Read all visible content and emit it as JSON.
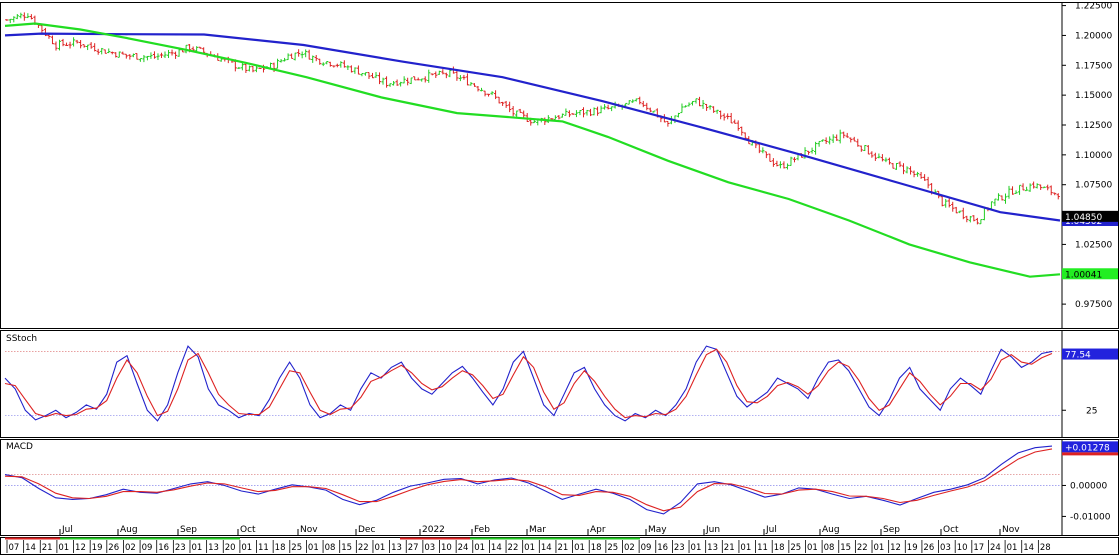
{
  "chart_data": [
    {
      "type": "candlestick",
      "panel": "price",
      "title": "",
      "ylim": [
        0.955,
        1.228
      ],
      "y_ticks": [
        0.975,
        1.0,
        1.025,
        1.05,
        1.075,
        1.1,
        1.125,
        1.15,
        1.175,
        1.2,
        1.225
      ],
      "y_tick_labels": [
        "0.97500",
        "1.00000",
        "1.02500",
        "1.05000",
        "1.07500",
        "1.10000",
        "1.12500",
        "1.15000",
        "1.17500",
        "1.20000",
        "1.22500"
      ],
      "bar_count": 300,
      "close_path": [
        [
          0,
          1.213
        ],
        [
          6,
          1.218
        ],
        [
          10,
          1.205
        ],
        [
          14,
          1.192
        ],
        [
          20,
          1.194
        ],
        [
          28,
          1.187
        ],
        [
          34,
          1.183
        ],
        [
          42,
          1.182
        ],
        [
          48,
          1.186
        ],
        [
          52,
          1.19
        ],
        [
          58,
          1.184
        ],
        [
          64,
          1.176
        ],
        [
          70,
          1.17
        ],
        [
          76,
          1.175
        ],
        [
          80,
          1.183
        ],
        [
          84,
          1.186
        ],
        [
          88,
          1.18
        ],
        [
          94,
          1.176
        ],
        [
          100,
          1.17
        ],
        [
          108,
          1.16
        ],
        [
          114,
          1.163
        ],
        [
          120,
          1.166
        ],
        [
          126,
          1.168
        ],
        [
          132,
          1.16
        ],
        [
          138,
          1.15
        ],
        [
          144,
          1.135
        ],
        [
          150,
          1.128
        ],
        [
          156,
          1.132
        ],
        [
          162,
          1.135
        ],
        [
          168,
          1.137
        ],
        [
          174,
          1.14
        ],
        [
          180,
          1.145
        ],
        [
          184,
          1.136
        ],
        [
          188,
          1.125
        ],
        [
          192,
          1.14
        ],
        [
          196,
          1.145
        ],
        [
          202,
          1.135
        ],
        [
          208,
          1.125
        ],
        [
          212,
          1.108
        ],
        [
          216,
          1.098
        ],
        [
          220,
          1.09
        ],
        [
          226,
          1.1
        ],
        [
          232,
          1.11
        ],
        [
          238,
          1.117
        ],
        [
          244,
          1.105
        ],
        [
          250,
          1.093
        ],
        [
          256,
          1.088
        ],
        [
          262,
          1.075
        ],
        [
          266,
          1.06
        ],
        [
          272,
          1.05
        ],
        [
          276,
          1.045
        ],
        [
          280,
          1.06
        ],
        [
          286,
          1.07
        ],
        [
          292,
          1.075
        ],
        [
          298,
          1.068
        ]
      ],
      "moving_averages": [
        {
          "color": "#2222cc",
          "last_value": 1.04502,
          "last_value_label": "1.04502",
          "path": [
            [
              0,
              1.2
            ],
            [
              18,
              1.2015
            ],
            [
              60,
              1.201
            ],
            [
              100,
              1.2008
            ],
            [
              150,
              1.192
            ],
            [
              200,
              1.178
            ],
            [
              250,
              1.165
            ],
            [
              300,
              1.145
            ],
            [
              350,
              1.123
            ],
            [
              400,
              1.1
            ],
            [
              450,
              1.076
            ],
            [
              500,
              1.052
            ],
            [
              530,
              1.045
            ]
          ]
        },
        {
          "color": "#22dd22",
          "last_value": 1.00041,
          "last_value_label": "1.00041",
          "path": [
            [
              0,
              1.208
            ],
            [
              20,
              1.21
            ],
            [
              50,
              1.205
            ],
            [
              80,
              1.198
            ],
            [
              120,
              1.188
            ],
            [
              160,
              1.177
            ],
            [
              200,
              1.165
            ],
            [
              250,
              1.148
            ],
            [
              300,
              1.135
            ],
            [
              340,
              1.131
            ],
            [
              370,
              1.128
            ],
            [
              400,
              1.115
            ],
            [
              440,
              1.095
            ],
            [
              480,
              1.077
            ],
            [
              520,
              1.063
            ],
            [
              560,
              1.045
            ],
            [
              600,
              1.025
            ],
            [
              640,
              1.01
            ],
            [
              680,
              0.998
            ],
            [
              700,
              1.0
            ]
          ]
        }
      ],
      "last_price": 1.0485,
      "last_price_label": "1.04850"
    },
    {
      "type": "line",
      "panel": "oscillator",
      "title": "SStoch",
      "ylim": [
        0,
        100
      ],
      "y_ticks": [
        25
      ],
      "y_tick_labels": [
        "25"
      ],
      "reference_lines": [
        20,
        80
      ],
      "last_value": 77.54,
      "last_value_label": "77.54",
      "series": [
        {
          "color": "#2222cc",
          "values": [
            55,
            45,
            25,
            16,
            20,
            25,
            18,
            23,
            30,
            26,
            40,
            70,
            76,
            50,
            25,
            15,
            30,
            60,
            85,
            75,
            45,
            30,
            25,
            18,
            22,
            20,
            35,
            55,
            70,
            55,
            30,
            18,
            22,
            30,
            25,
            45,
            60,
            55,
            65,
            70,
            55,
            45,
            40,
            50,
            60,
            66,
            55,
            42,
            30,
            45,
            70,
            80,
            55,
            30,
            20,
            40,
            60,
            65,
            45,
            30,
            20,
            15,
            22,
            18,
            25,
            20,
            30,
            45,
            70,
            85,
            82,
            60,
            38,
            28,
            35,
            42,
            55,
            50,
            45,
            36,
            55,
            70,
            72,
            62,
            45,
            28,
            20,
            35,
            55,
            65,
            45,
            35,
            25,
            45,
            55,
            48,
            40,
            62,
            82,
            75,
            65,
            70,
            78,
            80
          ]
        },
        {
          "color": "#dd2222",
          "values": [
            50,
            48,
            35,
            22,
            19,
            22,
            20,
            21,
            26,
            27,
            34,
            55,
            72,
            60,
            38,
            20,
            24,
            45,
            72,
            78,
            60,
            40,
            30,
            22,
            21,
            21,
            28,
            45,
            62,
            60,
            42,
            25,
            21,
            26,
            27,
            37,
            52,
            56,
            62,
            67,
            60,
            50,
            44,
            47,
            55,
            62,
            58,
            48,
            36,
            40,
            58,
            75,
            65,
            42,
            26,
            32,
            50,
            62,
            52,
            38,
            26,
            18,
            20,
            19,
            22,
            21,
            26,
            38,
            58,
            77,
            82,
            70,
            48,
            33,
            32,
            38,
            48,
            51,
            47,
            40,
            48,
            62,
            70,
            66,
            53,
            36,
            25,
            30,
            45,
            60,
            52,
            40,
            30,
            38,
            50,
            50,
            44,
            54,
            72,
            77,
            70,
            68,
            74,
            78
          ]
        }
      ]
    },
    {
      "type": "line",
      "panel": "oscillator",
      "title": "MACD",
      "ylim": [
        -0.016,
        0.015
      ],
      "y_ticks": [
        0.0,
        -0.01
      ],
      "y_tick_labels": [
        "0.00000",
        "-0.01000"
      ],
      "reference_lines": [
        0.0
      ],
      "last_value": 0.01278,
      "last_value_label": "+0.01278",
      "series": [
        {
          "color": "#2222cc",
          "values": [
            0.0035,
            0.0025,
            -0.001,
            -0.004,
            -0.0045,
            -0.0042,
            -0.003,
            -0.0012,
            -0.0022,
            -0.0025,
            -0.001,
            0.0005,
            0.0012,
            0.0,
            -0.0018,
            -0.0028,
            -0.0012,
            0.0002,
            -0.0005,
            -0.0015,
            -0.0045,
            -0.0062,
            -0.0048,
            -0.0022,
            -0.0002,
            0.0008,
            0.002,
            0.0022,
            0.0005,
            0.0018,
            0.0024,
            0.0008,
            -0.0018,
            -0.0045,
            -0.0028,
            -0.0012,
            -0.0025,
            -0.0045,
            -0.0078,
            -0.0092,
            -0.0055,
            0.0005,
            0.0012,
            0.0002,
            -0.0018,
            -0.0038,
            -0.0028,
            -0.0008,
            -0.0012,
            -0.0028,
            -0.0042,
            -0.0035,
            -0.0048,
            -0.0063,
            -0.0042,
            -0.0022,
            -0.0012,
            0.0002,
            0.0025,
            0.0068,
            0.0105,
            0.0122,
            0.0127
          ]
        },
        {
          "color": "#dd2222",
          "values": [
            0.003,
            0.0028,
            0.0005,
            -0.0025,
            -0.004,
            -0.0042,
            -0.0035,
            -0.002,
            -0.002,
            -0.0022,
            -0.0014,
            -0.0002,
            0.0008,
            0.0005,
            -0.0008,
            -0.002,
            -0.0016,
            -0.0004,
            -0.0004,
            -0.001,
            -0.003,
            -0.0052,
            -0.0052,
            -0.0035,
            -0.0015,
            0.0002,
            0.0013,
            0.0019,
            0.0012,
            0.0015,
            0.002,
            0.0014,
            -0.0004,
            -0.003,
            -0.0032,
            -0.002,
            -0.0022,
            -0.0035,
            -0.0062,
            -0.0082,
            -0.007,
            -0.002,
            0.0006,
            0.0005,
            -0.0008,
            -0.0026,
            -0.0028,
            -0.0015,
            -0.0012,
            -0.002,
            -0.0034,
            -0.0035,
            -0.0042,
            -0.0055,
            -0.0048,
            -0.0032,
            -0.0018,
            -0.0005,
            0.0015,
            0.005,
            0.0085,
            0.0108,
            0.0118
          ]
        }
      ]
    }
  ],
  "x_axis": {
    "date_row": [
      "07",
      "14",
      "21",
      "01",
      "12",
      "19",
      "26",
      "02",
      "09",
      "16",
      "23",
      "01",
      "13",
      "20",
      "01",
      "11",
      "18",
      "25",
      "01",
      "08",
      "15",
      "22",
      "01",
      "13",
      "27",
      "03",
      "10",
      "24",
      "01",
      "14",
      "22",
      "01",
      "14",
      "21",
      "01",
      "18",
      "25",
      "02",
      "09",
      "16",
      "23",
      "01",
      "13",
      "21",
      "01",
      "11",
      "18",
      "25",
      "01",
      "08",
      "15",
      "22",
      "01",
      "12",
      "19",
      "26",
      "03",
      "10",
      "17",
      "24",
      "01",
      "14",
      "28"
    ],
    "month_row": [
      "Jul",
      "Aug",
      "Sep",
      "Oct",
      "Nov",
      "Dec",
      "2022",
      "Feb",
      "Mar",
      "Apr",
      "May",
      "Jun",
      "Jul",
      "Aug",
      "Sep",
      "Oct",
      "Nov"
    ]
  },
  "colors": {
    "up_candle": "#22cc22",
    "down_candle": "#dd2222",
    "panel_border": "#000000",
    "stoch_reference": "#dd8888",
    "macd_reference": "#dd8888"
  }
}
